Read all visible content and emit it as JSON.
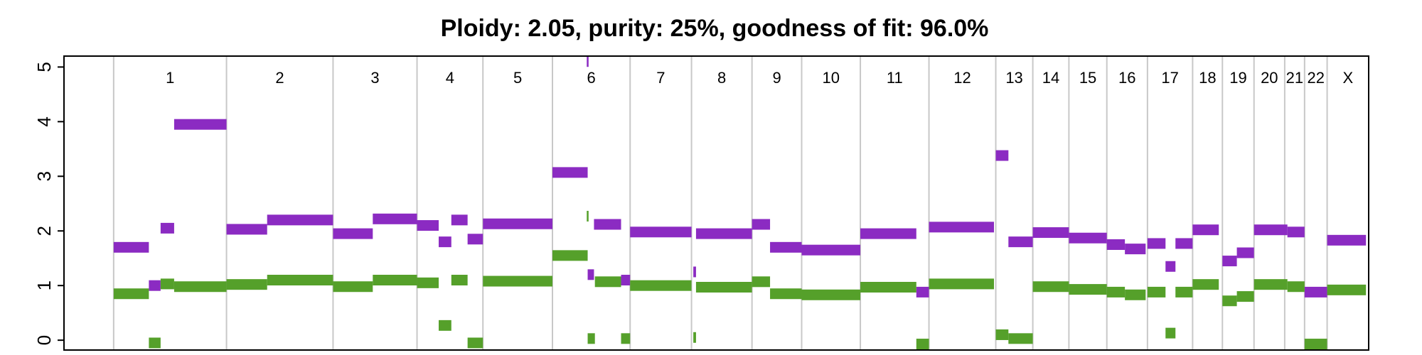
{
  "chart_data": {
    "type": "segments",
    "title": "Ploidy: 2.05, purity: 25%, goodness of fit: 96.0%",
    "ylim": [
      -0.18,
      5.2
    ],
    "yticks": [
      0,
      1,
      2,
      3,
      4,
      5
    ],
    "xlim": [
      63,
      1508
    ],
    "chromosomes": {
      "labels": [
        "1",
        "2",
        "3",
        "4",
        "5",
        "6",
        "7",
        "8",
        "9",
        "10",
        "11",
        "12",
        "13",
        "14",
        "15",
        "16",
        "17",
        "18",
        "19",
        "20",
        "21",
        "22",
        "X"
      ],
      "starts": [
        118,
        243,
        361,
        454,
        527,
        604,
        690,
        758,
        825,
        880,
        945,
        1021,
        1095,
        1136,
        1176,
        1218,
        1263,
        1313,
        1346,
        1381,
        1415,
        1437,
        1462
      ],
      "ends": [
        243,
        361,
        454,
        527,
        604,
        690,
        758,
        825,
        880,
        945,
        1021,
        1095,
        1136,
        1176,
        1218,
        1263,
        1313,
        1346,
        1381,
        1415,
        1437,
        1462,
        1508
      ]
    },
    "series": [
      {
        "color": "#8B2BC2",
        "x_start": [
          118,
          157,
          170,
          185,
          243,
          288,
          361,
          405,
          454,
          478,
          492,
          510,
          527,
          604,
          642,
          643,
          650,
          680,
          690,
          760,
          763,
          825,
          845,
          880,
          945,
          1007,
          1021,
          1095,
          1109,
          1136,
          1176,
          1218,
          1238,
          1263,
          1283,
          1294,
          1313,
          1346,
          1362,
          1381,
          1418,
          1437,
          1462
        ],
        "x_end": [
          157,
          170,
          185,
          243,
          288,
          361,
          405,
          454,
          478,
          492,
          510,
          527,
          604,
          643,
          644,
          650,
          680,
          690,
          758,
          763,
          825,
          845,
          880,
          945,
          1007,
          1021,
          1093,
          1109,
          1136,
          1176,
          1218,
          1238,
          1261,
          1283,
          1294,
          1313,
          1342,
          1362,
          1381,
          1418,
          1437,
          1462,
          1505
        ],
        "values": [
          1.7,
          1.0,
          2.05,
          3.95,
          2.03,
          2.2,
          1.95,
          2.22,
          2.1,
          1.8,
          2.2,
          1.85,
          2.13,
          3.07,
          5.1,
          1.2,
          2.12,
          1.1,
          1.98,
          1.25,
          1.95,
          2.12,
          1.7,
          1.65,
          1.95,
          0.88,
          2.07,
          3.38,
          1.8,
          1.97,
          1.87,
          1.75,
          1.67,
          1.77,
          1.35,
          1.77,
          2.02,
          1.45,
          1.6,
          2.02,
          1.98,
          0.88,
          1.83
        ]
      },
      {
        "color": "#55A02A",
        "x_start": [
          118,
          157,
          170,
          185,
          243,
          288,
          361,
          405,
          454,
          478,
          492,
          510,
          527,
          604,
          642,
          643,
          651,
          680,
          690,
          760,
          763,
          825,
          845,
          880,
          945,
          1007,
          1021,
          1095,
          1109,
          1136,
          1176,
          1218,
          1238,
          1263,
          1283,
          1294,
          1313,
          1346,
          1362,
          1381,
          1418,
          1437,
          1462
        ],
        "x_end": [
          157,
          170,
          185,
          243,
          288,
          361,
          405,
          454,
          478,
          492,
          510,
          527,
          604,
          643,
          644,
          651,
          680,
          690,
          758,
          763,
          825,
          845,
          880,
          945,
          1007,
          1021,
          1093,
          1109,
          1136,
          1176,
          1218,
          1238,
          1261,
          1283,
          1294,
          1313,
          1342,
          1362,
          1381,
          1418,
          1437,
          1462,
          1505
        ],
        "values": [
          0.85,
          -0.05,
          1.03,
          0.98,
          1.02,
          1.1,
          0.98,
          1.1,
          1.05,
          0.27,
          1.1,
          -0.05,
          1.08,
          1.55,
          2.27,
          0.03,
          1.07,
          0.03,
          1.0,
          0.05,
          0.97,
          1.07,
          0.85,
          0.83,
          0.97,
          -0.07,
          1.03,
          0.1,
          0.03,
          0.98,
          0.93,
          0.88,
          0.83,
          0.88,
          0.13,
          0.88,
          1.02,
          0.72,
          0.8,
          1.02,
          0.98,
          -0.07,
          0.92
        ]
      }
    ]
  }
}
